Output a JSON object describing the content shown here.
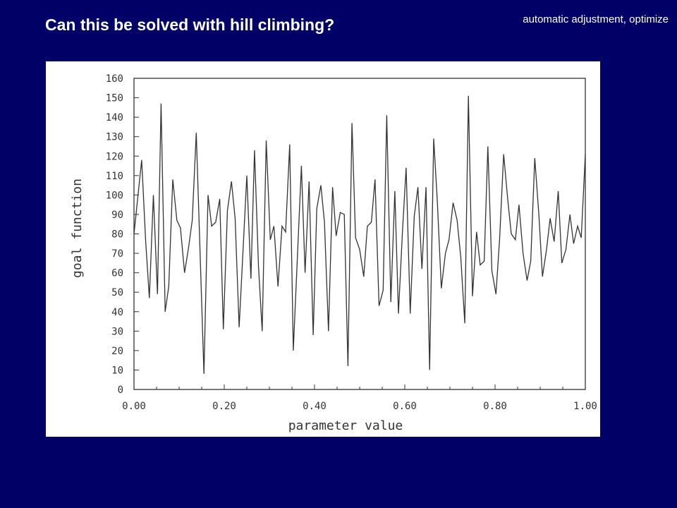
{
  "slide": {
    "title": "Can this be solved with hill climbing?",
    "corner_note": "automatic adjustment, optimize",
    "background": "#000066"
  },
  "chart_data": {
    "type": "line",
    "title": "",
    "xlabel": "parameter value",
    "ylabel": "goal function",
    "xlim": [
      0,
      1
    ],
    "ylim": [
      0,
      160
    ],
    "xticks": [
      "0.00",
      "0.20",
      "0.40",
      "0.60",
      "0.80",
      "1.00"
    ],
    "xtick_values": [
      0,
      0.2,
      0.4,
      0.6,
      0.8,
      1.0
    ],
    "yticks": [
      "0",
      "10",
      "20",
      "30",
      "40",
      "50",
      "60",
      "70",
      "80",
      "90",
      "100",
      "110",
      "120",
      "130",
      "140",
      "150",
      "160"
    ],
    "ytick_values": [
      0,
      10,
      20,
      30,
      40,
      50,
      60,
      70,
      80,
      90,
      100,
      110,
      120,
      130,
      140,
      150,
      160
    ],
    "grid": false,
    "line_color": "#333333",
    "series": [
      {
        "x": [
          0.0,
          0.017,
          0.026,
          0.034,
          0.043,
          0.052,
          0.06,
          0.069,
          0.077,
          0.086,
          0.095,
          0.103,
          0.112,
          0.121,
          0.129,
          0.138,
          0.155,
          0.164,
          0.172,
          0.181,
          0.19,
          0.198,
          0.207,
          0.216,
          0.224,
          0.233,
          0.25,
          0.259,
          0.267,
          0.276,
          0.284,
          0.293,
          0.302,
          0.31,
          0.319,
          0.328,
          0.336,
          0.345,
          0.353,
          0.362,
          0.371,
          0.379,
          0.388,
          0.397,
          0.405,
          0.414,
          0.422,
          0.431,
          0.44,
          0.448,
          0.457,
          0.466,
          0.474,
          0.483,
          0.491,
          0.5,
          0.509,
          0.517,
          0.526,
          0.534,
          0.543,
          0.552,
          0.56,
          0.569,
          0.578,
          0.586,
          0.595,
          0.603,
          0.612,
          0.621,
          0.629,
          0.638,
          0.647,
          0.655,
          0.664,
          0.672,
          0.681,
          0.69,
          0.698,
          0.707,
          0.716,
          0.724,
          0.733,
          0.741,
          0.75,
          0.759,
          0.767,
          0.776,
          0.784,
          0.793,
          0.802,
          0.81,
          0.819,
          0.828,
          0.836,
          0.845,
          0.853,
          0.862,
          0.871,
          0.879,
          0.888,
          0.897,
          0.905,
          0.914,
          0.922,
          0.931,
          0.94,
          0.948,
          0.957,
          0.966,
          0.974,
          0.983,
          0.991,
          1.0
        ],
        "y": [
          80,
          118,
          76,
          47,
          100,
          49,
          147,
          40,
          53,
          108,
          87,
          83,
          60,
          73,
          87,
          132,
          8,
          100,
          84,
          86,
          98,
          31,
          92,
          107,
          88,
          32,
          110,
          57,
          123,
          63,
          30,
          128,
          77,
          84,
          53,
          84,
          81,
          126,
          20,
          68,
          115,
          60,
          107,
          28,
          93,
          105,
          86,
          30,
          104,
          79,
          91,
          90,
          12,
          137,
          78,
          72,
          58,
          84,
          86,
          108,
          43,
          51,
          141,
          45,
          102,
          39,
          82,
          114,
          39,
          89,
          104,
          62,
          104,
          10,
          129,
          97,
          52,
          70,
          77,
          96,
          87,
          68,
          34,
          151,
          48,
          81,
          64,
          66,
          125,
          61,
          49,
          77,
          121,
          98,
          80,
          77,
          95,
          70,
          56,
          66,
          119,
          90,
          58,
          72,
          88,
          76,
          102,
          65,
          72,
          90,
          75,
          84,
          78,
          121
        ]
      }
    ]
  }
}
